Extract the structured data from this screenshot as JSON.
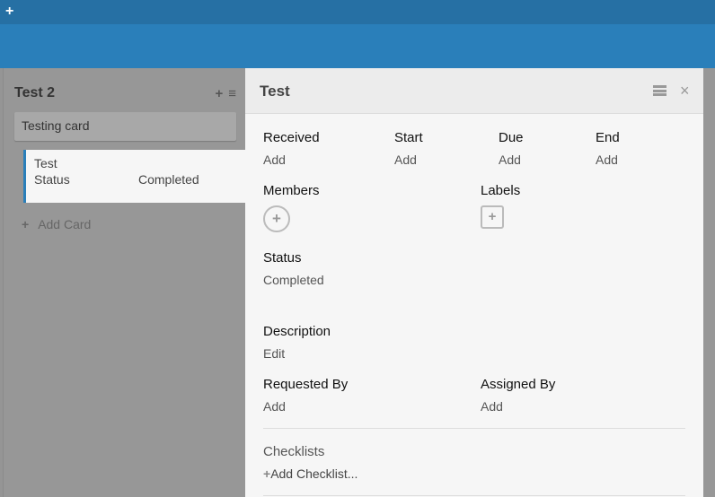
{
  "topbar": {
    "add_icon": "plus-icon"
  },
  "list": {
    "title": "Test 2",
    "cards": [
      {
        "title": "Testing card"
      },
      {
        "title": "Test",
        "field": "Status",
        "value": "Completed"
      }
    ],
    "add_card": "Add Card"
  },
  "detail": {
    "title": "Test",
    "received": "Received",
    "start": "Start",
    "due": "Due",
    "end": "End",
    "add": "Add",
    "members": "Members",
    "labels": "Labels",
    "status_label": "Status",
    "status_value": "Completed",
    "description": "Description",
    "edit": "Edit",
    "requested_by": "Requested By",
    "assigned_by": "Assigned By",
    "checklists": "Checklists",
    "add_checklist": "Add Checklist..."
  },
  "colors": {
    "accent": "#2a7fba"
  }
}
